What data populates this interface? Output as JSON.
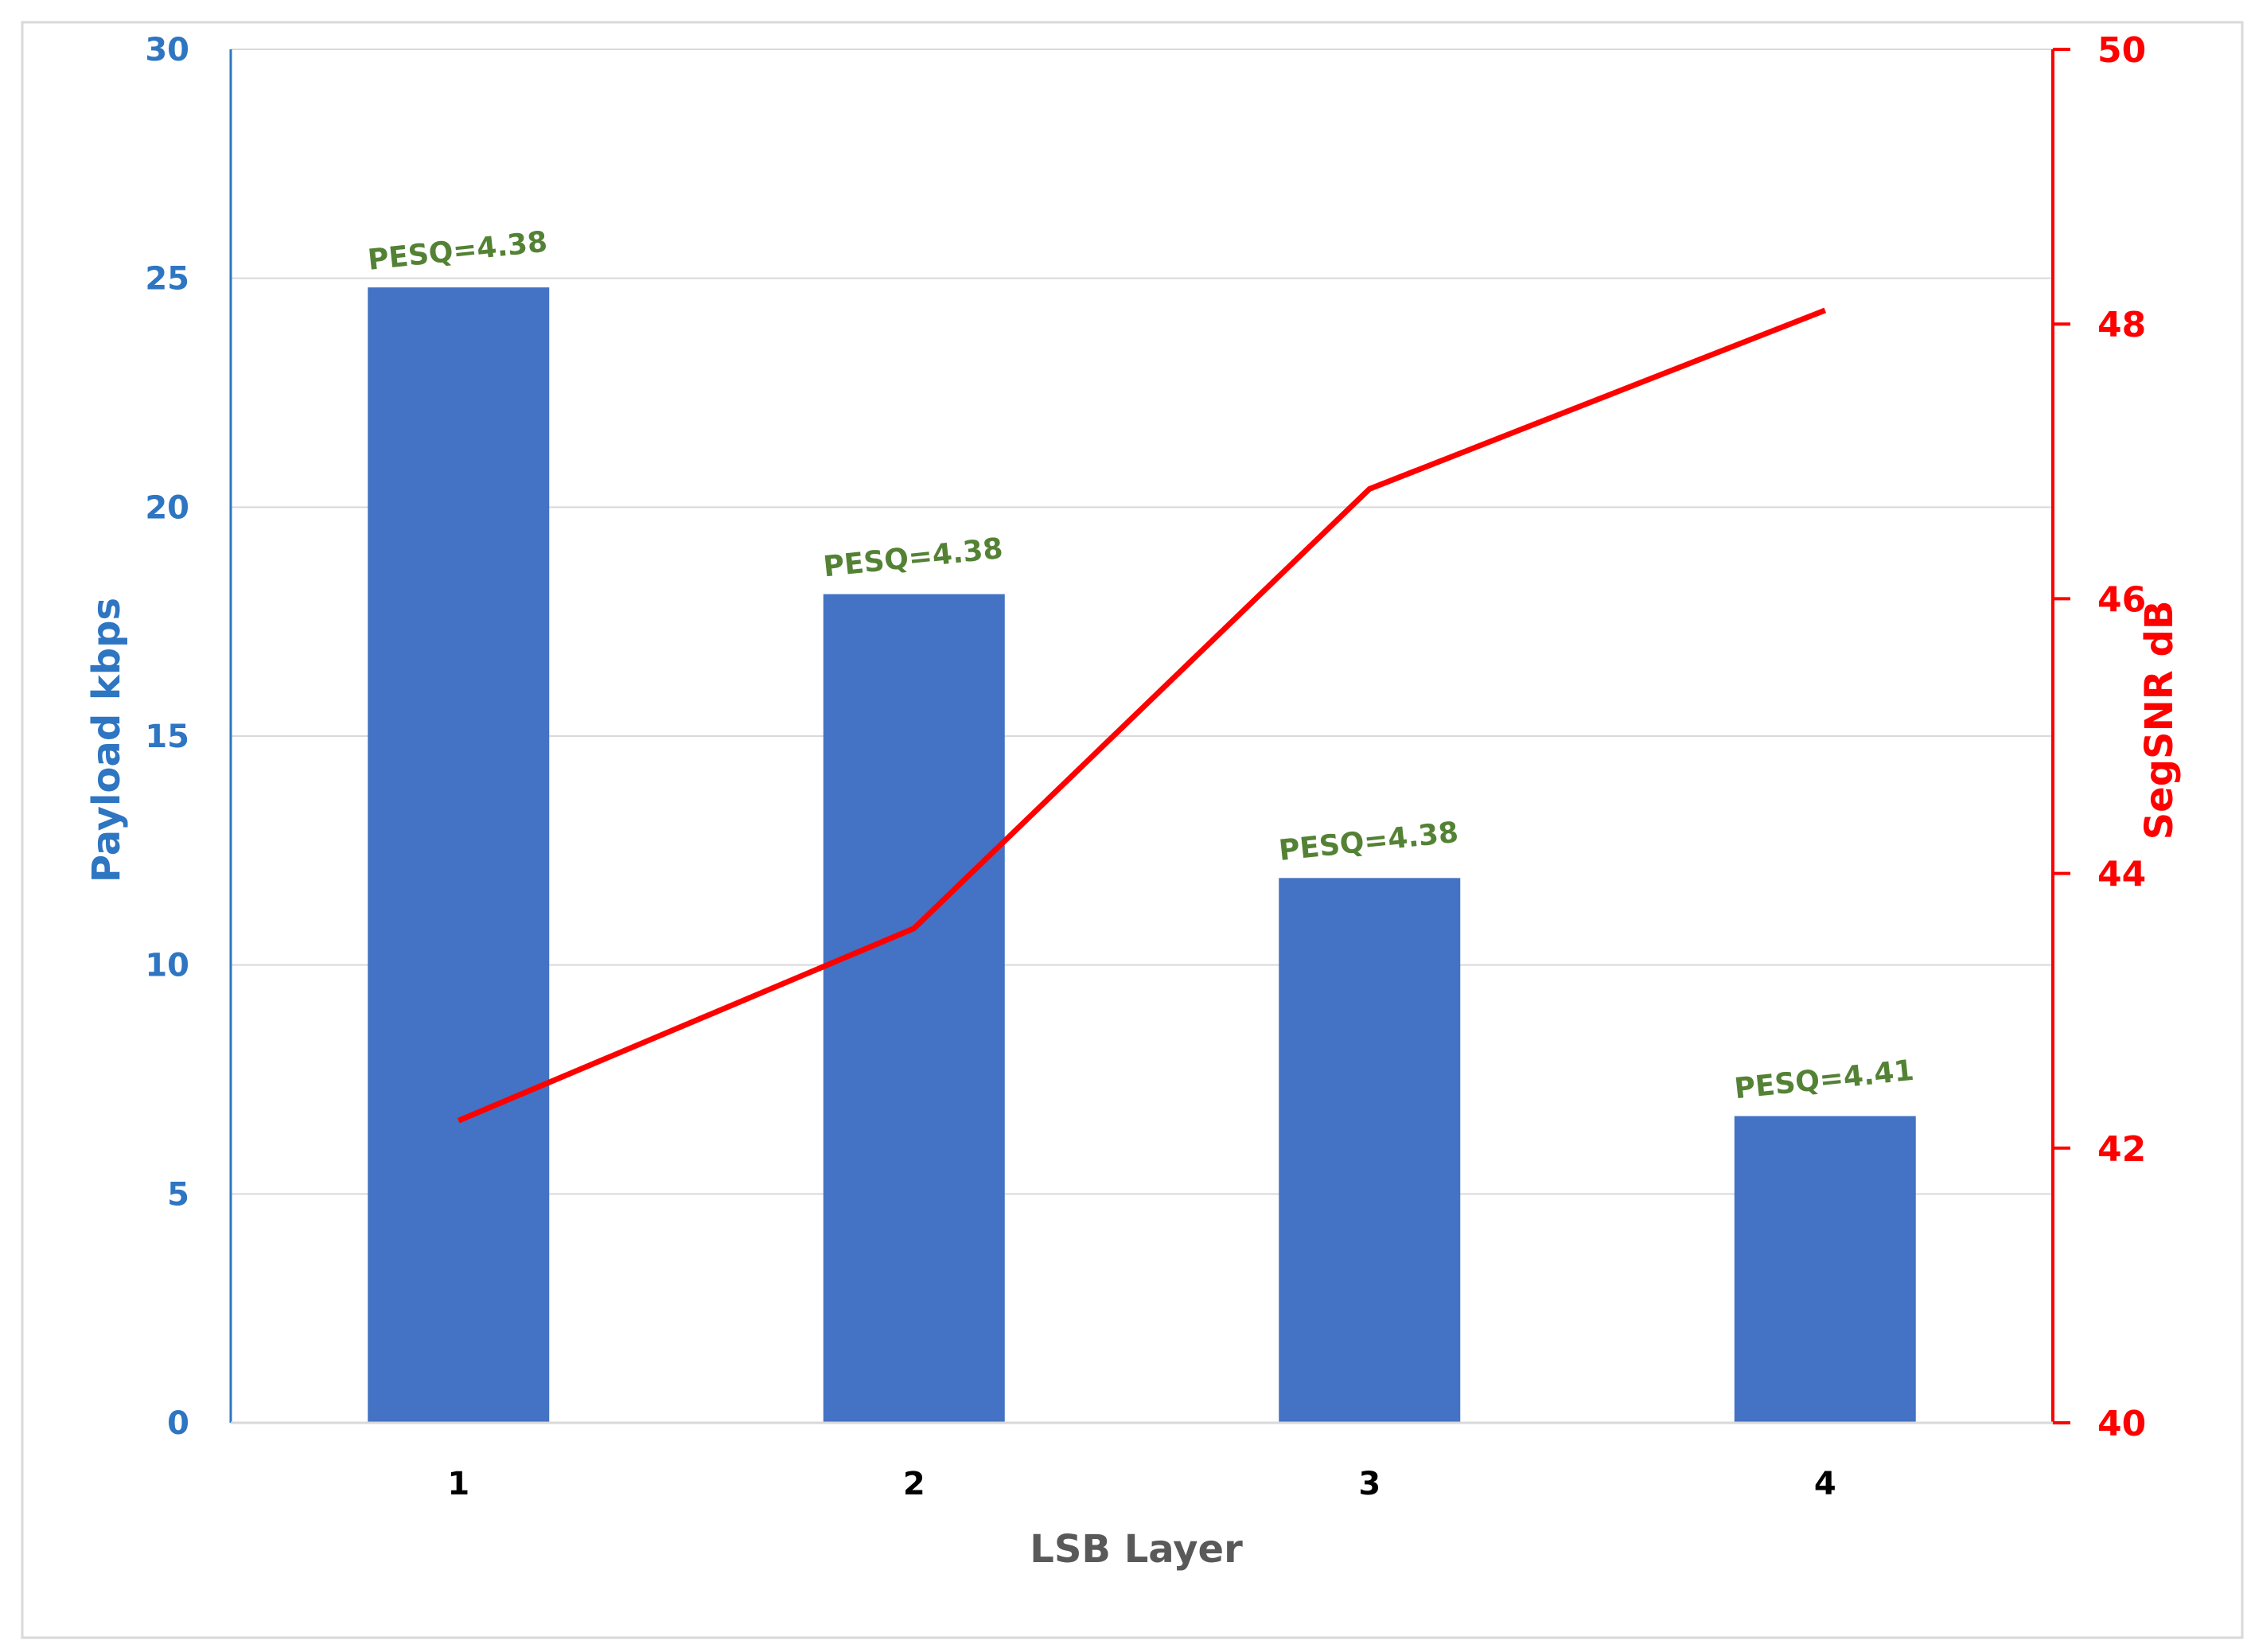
{
  "chart_data": {
    "type": "bar",
    "xlabel": "LSB Layer",
    "categories": [
      "1",
      "2",
      "3",
      "4"
    ],
    "y_left": {
      "label": "Payload kbps",
      "range": [
        0,
        30
      ],
      "ticks": [
        "0",
        "5",
        "10",
        "15",
        "20",
        "25",
        "30"
      ],
      "color": "#2E75C2"
    },
    "y_right": {
      "label": "SegSNR dB",
      "range": [
        40,
        50
      ],
      "ticks": [
        "40",
        "42",
        "44",
        "46",
        "48",
        "50"
      ],
      "color": "#FF0000"
    },
    "series": [
      {
        "type": "bar",
        "axis": "left",
        "values": [
          24.8,
          18.1,
          11.9,
          6.7
        ],
        "color": "#4472C4",
        "data_labels": [
          "PESQ=4.38",
          "PESQ=4.38",
          "PESQ=4.38",
          "PESQ=4.41"
        ],
        "data_label_color": "#548235"
      },
      {
        "type": "line",
        "axis": "right",
        "values": [
          42.2,
          43.6,
          46.8,
          48.1
        ],
        "color": "#FF0000"
      }
    ],
    "grid": "horizontal",
    "legend": "none"
  }
}
